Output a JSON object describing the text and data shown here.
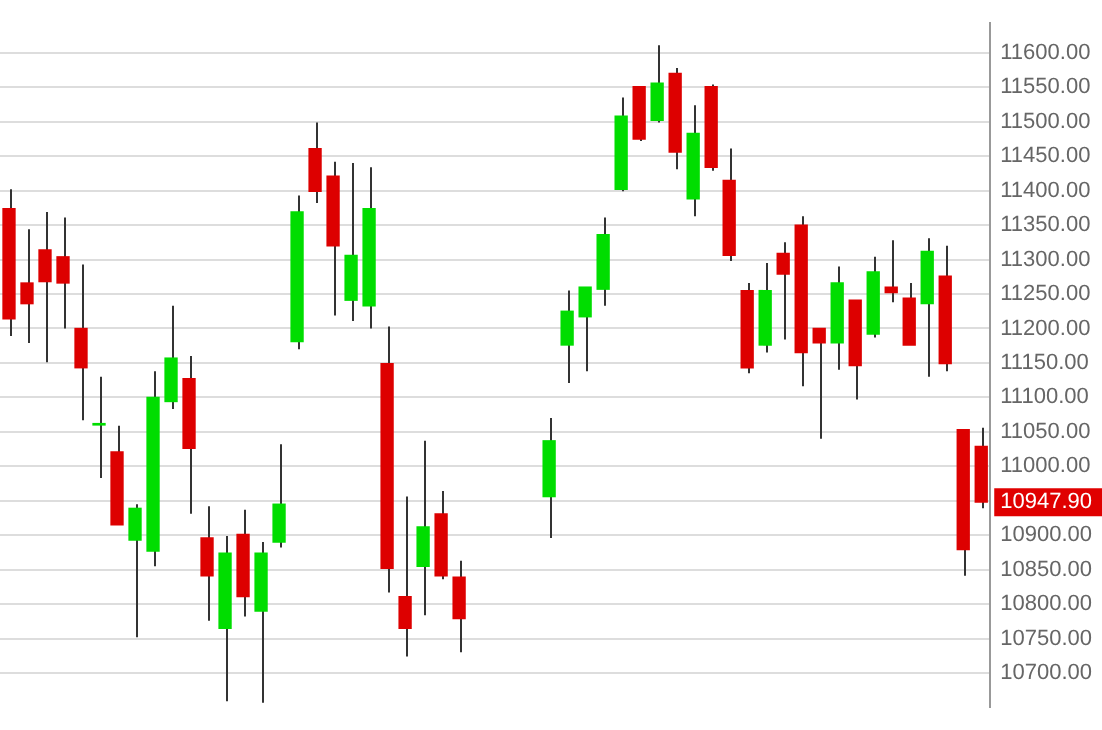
{
  "chart_data": {
    "type": "candlestick",
    "categories": [
      null,
      null,
      null,
      null,
      null,
      null,
      null,
      null,
      null,
      null,
      null,
      null,
      null,
      null,
      null,
      null,
      null,
      null,
      null,
      null,
      null,
      null,
      null,
      null,
      null,
      null,
      null,
      null,
      null,
      null,
      null,
      null,
      null,
      null,
      null,
      null,
      null,
      null,
      null,
      null,
      null,
      null,
      null,
      null,
      null,
      null,
      null,
      null,
      null,
      null,
      null,
      null,
      null,
      null,
      null
    ],
    "ohlc": [
      [
        11374,
        11402,
        11189,
        11214
      ],
      [
        11266,
        11344,
        11179,
        11236
      ],
      [
        11314,
        11369,
        11151,
        11268
      ],
      [
        11304,
        11361,
        11200,
        11266
      ],
      [
        11200,
        11293,
        11067,
        11143
      ],
      [
        11060,
        11130,
        10983,
        11062
      ],
      [
        11021,
        11059,
        10915,
        10915
      ],
      [
        10893,
        10945,
        10752,
        10939
      ],
      [
        10877,
        11138,
        10855,
        11100
      ],
      [
        11094,
        11233,
        11083,
        11157
      ],
      [
        11127,
        11160,
        10931,
        11026
      ],
      [
        10896,
        10942,
        10776,
        10841
      ],
      [
        10765,
        10899,
        10659,
        10874
      ],
      [
        10901,
        10937,
        10782,
        10811
      ],
      [
        10790,
        10890,
        10657,
        10874
      ],
      [
        10890,
        11032,
        10882,
        10945
      ],
      [
        11181,
        11393,
        11170,
        11369
      ],
      [
        11461,
        11499,
        11382,
        11399
      ],
      [
        11421,
        11442,
        11219,
        11320
      ],
      [
        11241,
        11440,
        11211,
        11306
      ],
      [
        11233,
        11434,
        11200,
        11374
      ],
      [
        11149,
        11203,
        10817,
        10852
      ],
      [
        10811,
        10956,
        10724,
        10765
      ],
      [
        10855,
        11037,
        10784,
        10912
      ],
      [
        10931,
        10964,
        10836,
        10841
      ],
      [
        10839,
        10863,
        10730,
        10779
      ],
      null,
      null,
      null,
      null,
      [
        10956,
        11070,
        10896,
        11037
      ],
      [
        11176,
        11255,
        11121,
        11225
      ],
      [
        11217,
        11260,
        11138,
        11260
      ],
      [
        11257,
        11361,
        11233,
        11336
      ],
      [
        11402,
        11535,
        11399,
        11508
      ],
      [
        11551,
        11551,
        11472,
        11475
      ],
      [
        11502,
        11611,
        11499,
        11556
      ],
      [
        11570,
        11578,
        11431,
        11456
      ],
      [
        11388,
        11524,
        11363,
        11483
      ],
      [
        11551,
        11554,
        11429,
        11434
      ],
      [
        11415,
        11461,
        11298,
        11306
      ],
      [
        11255,
        11266,
        11135,
        11143
      ],
      [
        11176,
        11295,
        11165,
        11255
      ],
      [
        11309,
        11325,
        11184,
        11279
      ],
      [
        11350,
        11363,
        11116,
        11165
      ],
      [
        11200,
        11200,
        11040,
        11179
      ],
      [
        11179,
        11290,
        11140,
        11266
      ],
      [
        11241,
        11241,
        11097,
        11146
      ],
      [
        11192,
        11304,
        11187,
        11282
      ],
      [
        11260,
        11328,
        11238,
        11252
      ],
      [
        11244,
        11266,
        11176,
        11176
      ],
      [
        11236,
        11331,
        11130,
        11312
      ],
      [
        11276,
        11320,
        11138,
        11149
      ],
      [
        11053,
        11053,
        10841,
        10879
      ],
      [
        11029,
        11056,
        10939,
        10947.9
      ]
    ],
    "colors": [
      "#dd0000",
      "#dd0000",
      "#dd0000",
      "#dd0000",
      "#dd0000",
      "#00dd00",
      "#dd0000",
      "#00dd00",
      "#00dd00",
      "#00dd00",
      "#dd0000",
      "#dd0000",
      "#00dd00",
      "#dd0000",
      "#00dd00",
      "#00dd00",
      "#00dd00",
      "#dd0000",
      "#dd0000",
      "#00dd00",
      "#00dd00",
      "#dd0000",
      "#dd0000",
      "#00dd00",
      "#dd0000",
      "#dd0000",
      null,
      null,
      null,
      null,
      "#00dd00",
      "#00dd00",
      "#00dd00",
      "#00dd00",
      "#00dd00",
      "#dd0000",
      "#00dd00",
      "#dd0000",
      "#00dd00",
      "#dd0000",
      "#dd0000",
      "#dd0000",
      "#00dd00",
      "#dd0000",
      "#dd0000",
      "#dd0000",
      "#00dd00",
      "#dd0000",
      "#00dd00",
      "#dd0000",
      "#dd0000",
      "#00dd00",
      "#dd0000",
      "#dd0000",
      "#dd0000"
    ],
    "ylim": [
      10651,
      11643
    ],
    "yticks": [
      {
        "value": 10700,
        "label": "10700.00"
      },
      {
        "value": 10750,
        "label": "10750.00"
      },
      {
        "value": 10800,
        "label": "10800.00"
      },
      {
        "value": 10850,
        "label": "10850.00"
      },
      {
        "value": 10900,
        "label": "10900.00"
      },
      {
        "value": 10950,
        "label": null
      },
      {
        "value": 11000,
        "label": "11000.00"
      },
      {
        "value": 11050,
        "label": "11050.00"
      },
      {
        "value": 11100,
        "label": "11100.00"
      },
      {
        "value": 11150,
        "label": "11150.00"
      },
      {
        "value": 11200,
        "label": "11200.00"
      },
      {
        "value": 11250,
        "label": "11250.00"
      },
      {
        "value": 11300,
        "label": "11300.00"
      },
      {
        "value": 11350,
        "label": "11350.00"
      },
      {
        "value": 11400,
        "label": "11400.00"
      },
      {
        "value": 11450,
        "label": "11450.00"
      },
      {
        "value": 11500,
        "label": "11500.00"
      },
      {
        "value": 11550,
        "label": "11550.00"
      },
      {
        "value": 11600,
        "label": "11600.00"
      }
    ],
    "annotations": [
      "10947.90"
    ],
    "grid": "y",
    "tick_labels": "y"
  }
}
